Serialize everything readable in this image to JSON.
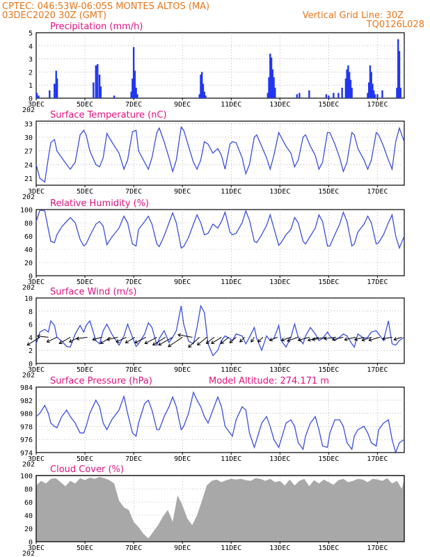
{
  "header": {
    "line1": "CPTEC:   046:53W-06:05S   MONTES ALTOS (MA)",
    "line2": "03DEC2020 30Z (GMT)",
    "grid_note": "Vertical Grid Line: 30Z",
    "code": "TQ0126L028"
  },
  "colors": {
    "header": "#e8761a",
    "panel_title": "#e0117f",
    "line": "#3a4ee0",
    "bar": "#2136f0",
    "cloud": "#a8a8a8"
  },
  "x_axis": {
    "start_day": 3,
    "end_day": 18.1,
    "ticks": [
      {
        "day": 3,
        "label": "3DEC"
      },
      {
        "day": 5,
        "label": "5DEC"
      },
      {
        "day": 7,
        "label": "7DEC"
      },
      {
        "day": 9,
        "label": "9DEC"
      },
      {
        "day": 11,
        "label": "11DEC"
      },
      {
        "day": 13,
        "label": "13DEC"
      },
      {
        "day": 15,
        "label": "15DEC"
      },
      {
        "day": 17,
        "label": "17DEC"
      }
    ],
    "year_stub": "202"
  },
  "chart_data": [
    {
      "type": "bar",
      "title": "Precipitation (mm/h)",
      "ylim": [
        0,
        5
      ],
      "yticks": [
        "0",
        "1",
        "2",
        "3",
        "4",
        "5"
      ],
      "x": [
        3.03,
        3.1,
        3.55,
        3.75,
        3.82,
        3.86,
        5.35,
        5.45,
        5.52,
        5.6,
        5.65,
        6.2,
        6.9,
        6.95,
        7.0,
        7.05,
        7.1,
        7.15,
        9.7,
        9.75,
        9.8,
        9.85,
        9.9,
        9.95,
        12.5,
        12.55,
        12.6,
        12.65,
        12.7,
        12.75,
        12.8,
        13.7,
        13.8,
        14.2,
        14.9,
        15.0,
        15.2,
        15.4,
        15.55,
        15.7,
        15.75,
        15.8,
        15.85,
        15.9,
        15.95,
        16.6,
        16.65,
        16.7,
        16.75,
        16.8,
        16.85,
        16.9,
        17.0,
        17.2,
        17.8,
        17.85,
        17.9,
        17.95
      ],
      "values": [
        0.4,
        0.2,
        0.6,
        1.1,
        2.1,
        1.5,
        1.2,
        2.5,
        2.6,
        1.8,
        0.9,
        0.2,
        0.5,
        1.5,
        3.9,
        2.1,
        0.8,
        0.3,
        0.3,
        1.8,
        2.0,
        1.1,
        0.5,
        0.2,
        0.4,
        1.6,
        3.4,
        3.1,
        2.2,
        1.6,
        0.8,
        0.3,
        0.4,
        0.6,
        0.3,
        0.2,
        0.4,
        0.4,
        0.8,
        1.5,
        2.2,
        2.5,
        2.0,
        1.4,
        0.8,
        0.4,
        1.2,
        2.5,
        2.0,
        1.1,
        0.6,
        0.3,
        0.3,
        0.6,
        0.8,
        4.5,
        3.6,
        0.8
      ]
    },
    {
      "type": "line",
      "title": "Surface Temperature (nC)",
      "ylim": [
        19.5,
        33.5
      ],
      "yticks": [
        "21",
        "24",
        "27",
        "30",
        "33"
      ],
      "x": [
        3.0,
        3.15,
        3.35,
        3.5,
        3.6,
        3.75,
        3.85,
        4.05,
        4.25,
        4.4,
        4.6,
        4.8,
        4.95,
        5.05,
        5.2,
        5.45,
        5.6,
        5.75,
        5.9,
        6.1,
        6.4,
        6.6,
        6.75,
        6.95,
        7.1,
        7.2,
        7.45,
        7.6,
        7.75,
        7.95,
        8.05,
        8.25,
        8.45,
        8.6,
        8.75,
        8.95,
        9.05,
        9.25,
        9.45,
        9.6,
        9.75,
        9.9,
        10.05,
        10.25,
        10.45,
        10.6,
        10.75,
        10.95,
        11.05,
        11.2,
        11.45,
        11.6,
        11.75,
        11.95,
        12.05,
        12.25,
        12.45,
        12.6,
        12.75,
        12.95,
        13.05,
        13.25,
        13.45,
        13.6,
        13.75,
        13.95,
        14.05,
        14.25,
        14.45,
        14.6,
        14.75,
        14.95,
        15.05,
        15.25,
        15.45,
        15.6,
        15.75,
        15.95,
        16.05,
        16.2,
        16.45,
        16.6,
        16.75,
        16.95,
        17.05,
        17.25,
        17.45,
        17.6,
        17.75,
        17.9,
        18.1
      ],
      "values": [
        24.0,
        21.0,
        20.2,
        25.5,
        28.8,
        29.5,
        27.0,
        25.5,
        24.0,
        23.0,
        24.5,
        30.5,
        31.5,
        30.5,
        27.0,
        24.0,
        23.5,
        25.5,
        30.8,
        29.0,
        26.5,
        23.0,
        25.0,
        31.2,
        31.5,
        27.0,
        24.5,
        23.0,
        25.5,
        31.0,
        32.0,
        29.0,
        25.5,
        22.5,
        25.0,
        32.2,
        31.5,
        28.0,
        24.5,
        23.0,
        25.0,
        29.0,
        28.5,
        26.5,
        27.5,
        26.0,
        23.0,
        28.5,
        29.0,
        28.8,
        25.5,
        22.0,
        24.0,
        30.0,
        30.5,
        28.0,
        25.5,
        23.0,
        26.0,
        31.0,
        30.0,
        28.0,
        26.5,
        23.5,
        25.0,
        30.0,
        30.5,
        28.0,
        26.0,
        23.0,
        24.5,
        31.0,
        31.0,
        28.5,
        25.5,
        22.5,
        24.5,
        31.0,
        30.5,
        27.5,
        25.0,
        23.0,
        25.0,
        31.0,
        30.5,
        28.0,
        25.0,
        23.0,
        29.0,
        32.0,
        29.0
      ]
    },
    {
      "type": "line",
      "title": "Relative Humidity (%)",
      "ylim": [
        0,
        100
      ],
      "yticks": [
        "0",
        "20",
        "40",
        "60",
        "80",
        "100"
      ],
      "x": [
        3.0,
        3.15,
        3.35,
        3.5,
        3.6,
        3.75,
        3.85,
        4.05,
        4.25,
        4.4,
        4.6,
        4.8,
        4.95,
        5.05,
        5.2,
        5.45,
        5.6,
        5.75,
        5.9,
        6.1,
        6.4,
        6.6,
        6.75,
        6.95,
        7.1,
        7.2,
        7.45,
        7.6,
        7.75,
        7.95,
        8.05,
        8.25,
        8.45,
        8.6,
        8.75,
        8.95,
        9.05,
        9.25,
        9.45,
        9.6,
        9.75,
        9.9,
        10.05,
        10.25,
        10.45,
        10.6,
        10.75,
        10.95,
        11.05,
        11.2,
        11.45,
        11.6,
        11.75,
        11.95,
        12.05,
        12.25,
        12.45,
        12.6,
        12.75,
        12.95,
        13.05,
        13.25,
        13.45,
        13.6,
        13.75,
        13.95,
        14.05,
        14.25,
        14.45,
        14.6,
        14.75,
        14.95,
        15.05,
        15.25,
        15.45,
        15.6,
        15.75,
        15.95,
        16.05,
        16.2,
        16.45,
        16.6,
        16.75,
        16.95,
        17.05,
        17.25,
        17.45,
        17.6,
        17.75,
        17.9,
        18.1
      ],
      "values": [
        82.0,
        99.0,
        98.0,
        70.0,
        52.0,
        50.0,
        62.0,
        74.0,
        82.0,
        88.0,
        80.0,
        55.0,
        45.0,
        48.0,
        60.0,
        78.0,
        82.0,
        75.0,
        47.0,
        58.0,
        72.0,
        90.0,
        80.0,
        48.0,
        45.0,
        70.0,
        82.0,
        90.0,
        78.0,
        48.0,
        44.0,
        60.0,
        80.0,
        95.0,
        80.0,
        42.0,
        44.0,
        58.0,
        78.0,
        92.0,
        80.0,
        62.0,
        64.0,
        78.0,
        72.0,
        82.0,
        96.0,
        66.0,
        62.0,
        64.0,
        80.0,
        98.0,
        84.0,
        52.0,
        50.0,
        62.0,
        76.0,
        92.0,
        72.0,
        46.0,
        50.0,
        62.0,
        70.0,
        88.0,
        80.0,
        52.0,
        48.0,
        60.0,
        72.0,
        92.0,
        82.0,
        45.0,
        45.0,
        62.0,
        78.0,
        96.0,
        82.0,
        45.0,
        48.0,
        66.0,
        78.0,
        90.0,
        80.0,
        48.0,
        50.0,
        62.0,
        80.0,
        92.0,
        60.0,
        42.0,
        60.0
      ]
    },
    {
      "type": "line",
      "title": "Surface Wind (m/s)",
      "ylim": [
        0,
        10
      ],
      "yticks": [
        "0",
        "2",
        "4",
        "6",
        "8",
        "10"
      ],
      "x": [
        3.0,
        3.15,
        3.35,
        3.5,
        3.6,
        3.75,
        3.85,
        4.05,
        4.25,
        4.4,
        4.6,
        4.8,
        4.95,
        5.05,
        5.2,
        5.45,
        5.6,
        5.75,
        5.9,
        6.1,
        6.4,
        6.6,
        6.75,
        6.95,
        7.1,
        7.2,
        7.45,
        7.6,
        7.75,
        7.95,
        8.05,
        8.25,
        8.45,
        8.6,
        8.75,
        8.95,
        9.05,
        9.25,
        9.45,
        9.6,
        9.75,
        9.9,
        10.05,
        10.25,
        10.45,
        10.6,
        10.75,
        10.95,
        11.05,
        11.2,
        11.45,
        11.6,
        11.75,
        11.95,
        12.05,
        12.25,
        12.45,
        12.6,
        12.75,
        12.95,
        13.05,
        13.25,
        13.45,
        13.6,
        13.75,
        13.95,
        14.05,
        14.25,
        14.45,
        14.6,
        14.75,
        14.95,
        15.05,
        15.25,
        15.45,
        15.6,
        15.75,
        15.95,
        16.05,
        16.2,
        16.45,
        16.6,
        16.75,
        16.95,
        17.05,
        17.25,
        17.45,
        17.6,
        17.75,
        17.9,
        18.1
      ],
      "values": [
        3.0,
        4.8,
        5.2,
        4.8,
        6.5,
        5.8,
        4.0,
        3.4,
        2.6,
        2.5,
        4.5,
        5.8,
        4.8,
        5.8,
        6.5,
        3.5,
        3.0,
        5.0,
        6.0,
        4.5,
        2.8,
        4.2,
        6.0,
        4.0,
        2.6,
        3.0,
        4.5,
        6.2,
        5.5,
        2.8,
        3.8,
        5.0,
        3.2,
        4.0,
        5.0,
        8.8,
        6.0,
        3.4,
        3.0,
        5.5,
        8.8,
        7.8,
        3.0,
        1.2,
        2.0,
        3.5,
        4.2,
        3.8,
        3.5,
        4.5,
        4.2,
        3.0,
        4.0,
        5.5,
        3.8,
        2.0,
        4.2,
        3.5,
        3.8,
        5.8,
        3.5,
        2.5,
        4.0,
        6.0,
        4.0,
        3.0,
        4.2,
        5.5,
        4.5,
        3.5,
        3.8,
        4.8,
        4.2,
        3.5,
        4.0,
        4.5,
        4.2,
        3.0,
        2.5,
        4.5,
        3.8,
        4.0,
        4.8,
        5.0,
        4.5,
        3.5,
        6.5,
        3.0,
        2.8,
        3.5,
        4.0
      ],
      "vectors": {
        "x": [
          3.15,
          3.5,
          3.85,
          4.4,
          4.75,
          5.1,
          5.7,
          6.05,
          6.35,
          6.7,
          7.05,
          7.5,
          7.95,
          8.3,
          8.6,
          9.0,
          9.4,
          9.7,
          10.0,
          10.3,
          10.6,
          10.9,
          11.2,
          11.55,
          11.95,
          12.3,
          12.9,
          13.45,
          13.75,
          14.2,
          14.6,
          14.9,
          15.3,
          15.6,
          16.1,
          16.45,
          16.75,
          17.1,
          17.6,
          18.0
        ],
        "u": [
          -4.0,
          -3.5,
          -3.2,
          -3.5,
          -3.0,
          -3.5,
          -3.0,
          -3.2,
          -3.5,
          -3.2,
          -3.0,
          -3.5,
          -3.8,
          -4.0,
          -4.5,
          -4.5,
          -4.5,
          -3.5,
          -3.0,
          -2.5,
          -3.2,
          -2.5,
          -2.0,
          -1.5,
          -1.0,
          -1.5,
          -2.5,
          -3.0,
          -3.5,
          -3.5,
          -3.5,
          -4.5,
          -3.8,
          -3.5,
          -3.5,
          -3.0,
          -3.0,
          -3.5,
          -3.0,
          -2.5
        ],
        "v": [
          -2.5,
          0.4,
          -1.5,
          -2.0,
          -1.5,
          -0.5,
          -0.8,
          -2.0,
          -0.8,
          -1.5,
          -1.8,
          -1.8,
          -2.0,
          -2.5,
          -2.5,
          -3.0,
          0.8,
          -3.2,
          -2.5,
          -2.0,
          -2.0,
          -2.0,
          -1.8,
          -1.5,
          -1.5,
          -1.5,
          -1.0,
          -1.0,
          -1.2,
          -1.0,
          -1.0,
          -0.8,
          -0.5,
          -0.8,
          -0.8,
          -0.8,
          -1.0,
          -1.0,
          -0.5,
          -0.8
        ]
      }
    },
    {
      "type": "line",
      "title": "Surface Pressure (hPa)",
      "ylim": [
        974,
        984
      ],
      "yticks": [
        "974",
        "976",
        "978",
        "980",
        "982",
        "984"
      ],
      "x": [
        3.0,
        3.15,
        3.35,
        3.5,
        3.6,
        3.75,
        3.85,
        4.05,
        4.25,
        4.4,
        4.6,
        4.8,
        4.95,
        5.05,
        5.2,
        5.45,
        5.6,
        5.75,
        5.9,
        6.1,
        6.4,
        6.6,
        6.75,
        6.95,
        7.1,
        7.2,
        7.45,
        7.6,
        7.75,
        7.95,
        8.05,
        8.25,
        8.45,
        8.6,
        8.75,
        8.95,
        9.05,
        9.25,
        9.45,
        9.6,
        9.75,
        9.9,
        10.05,
        10.25,
        10.45,
        10.6,
        10.75,
        10.95,
        11.05,
        11.2,
        11.45,
        11.6,
        11.75,
        11.95,
        12.05,
        12.25,
        12.45,
        12.6,
        12.75,
        12.95,
        13.05,
        13.25,
        13.45,
        13.6,
        13.75,
        13.95,
        14.05,
        14.25,
        14.45,
        14.6,
        14.75,
        14.95,
        15.05,
        15.25,
        15.45,
        15.6,
        15.75,
        15.95,
        16.05,
        16.2,
        16.45,
        16.6,
        16.75,
        16.95,
        17.05,
        17.25,
        17.45,
        17.6,
        17.75,
        17.9,
        18.1
      ],
      "values": [
        979.5,
        980.0,
        981.2,
        980.0,
        978.5,
        978.0,
        977.8,
        979.5,
        980.5,
        979.5,
        978.5,
        977.0,
        977.0,
        978.0,
        980.0,
        982.0,
        981.0,
        978.5,
        977.5,
        979.0,
        980.5,
        982.6,
        980.0,
        977.0,
        976.5,
        978.5,
        981.5,
        982.0,
        980.5,
        977.5,
        977.5,
        979.5,
        981.0,
        982.5,
        981.0,
        977.5,
        978.0,
        980.0,
        983.2,
        982.0,
        981.0,
        979.5,
        978.5,
        980.5,
        982.5,
        981.0,
        978.0,
        977.0,
        976.5,
        979.0,
        981.0,
        980.5,
        977.0,
        974.8,
        976.0,
        978.5,
        979.5,
        978.0,
        976.0,
        974.8,
        976.0,
        978.5,
        979.0,
        978.0,
        975.5,
        974.5,
        976.5,
        978.5,
        979.5,
        977.5,
        975.0,
        974.8,
        977.0,
        979.0,
        979.0,
        978.0,
        975.5,
        974.5,
        976.5,
        977.5,
        978.0,
        977.0,
        975.5,
        975.0,
        977.5,
        978.5,
        979.0,
        976.0,
        974.0,
        975.5,
        976.0
      ]
    },
    {
      "type": "area",
      "title": "Cloud Cover (%)",
      "ylim": [
        0,
        100
      ],
      "yticks": [
        "0",
        "20",
        "40",
        "60",
        "80",
        "100"
      ],
      "x": [
        3.0,
        3.2,
        3.4,
        3.6,
        3.8,
        4.0,
        4.2,
        4.4,
        4.6,
        4.8,
        5.0,
        5.2,
        5.4,
        5.6,
        5.8,
        6.0,
        6.2,
        6.4,
        6.6,
        6.8,
        7.0,
        7.2,
        7.4,
        7.6,
        7.8,
        8.0,
        8.2,
        8.4,
        8.6,
        8.8,
        9.0,
        9.2,
        9.4,
        9.6,
        9.8,
        10.0,
        10.2,
        10.4,
        10.6,
        10.8,
        11.0,
        11.2,
        11.4,
        11.6,
        11.8,
        12.0,
        12.2,
        12.4,
        12.6,
        12.8,
        13.0,
        13.2,
        13.4,
        13.6,
        13.8,
        14.0,
        14.2,
        14.4,
        14.6,
        14.8,
        15.0,
        15.2,
        15.4,
        15.6,
        15.8,
        16.0,
        16.2,
        16.4,
        16.6,
        16.8,
        17.0,
        17.2,
        17.4,
        17.6,
        17.8,
        18.0,
        18.1
      ],
      "values": [
        85,
        92,
        88,
        95,
        96,
        90,
        84,
        92,
        88,
        96,
        93,
        97,
        95,
        98,
        96,
        93,
        88,
        62,
        52,
        48,
        30,
        22,
        12,
        5,
        15,
        25,
        38,
        48,
        30,
        70,
        55,
        35,
        25,
        40,
        62,
        85,
        92,
        94,
        90,
        93,
        95,
        94,
        95,
        93,
        92,
        96,
        95,
        92,
        95,
        90,
        92,
        85,
        94,
        85,
        92,
        95,
        84,
        93,
        88,
        94,
        90,
        86,
        93,
        95,
        90,
        92,
        95,
        94,
        90,
        95,
        94,
        92,
        96,
        88,
        92,
        80,
        95
      ],
      "extra_label": "Model Altitude: 274.171 m"
    }
  ]
}
